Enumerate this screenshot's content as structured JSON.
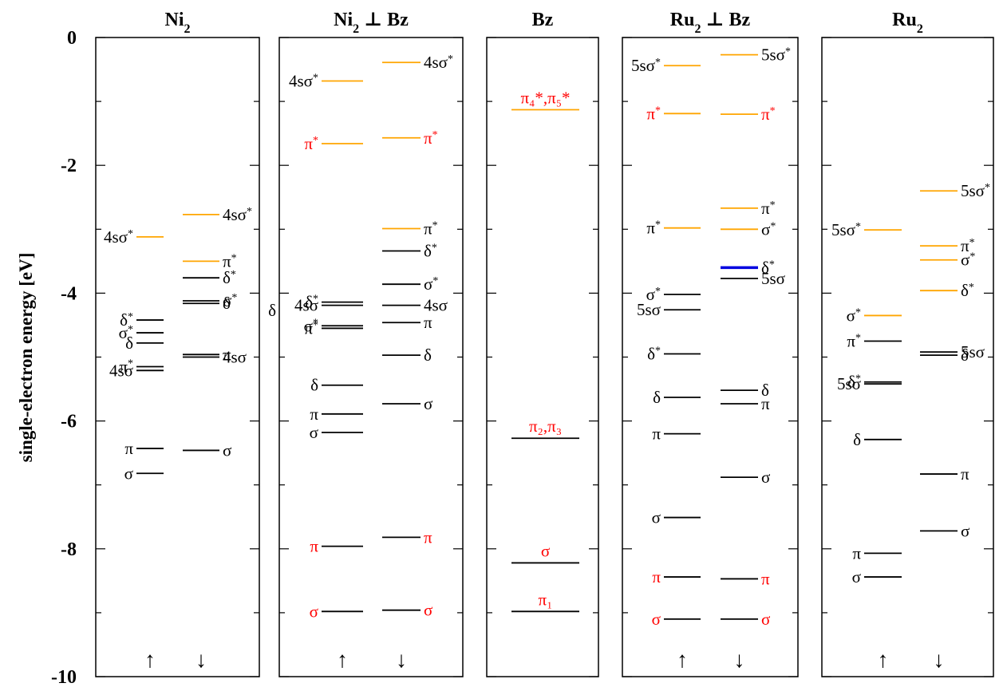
{
  "chart_data": {
    "type": "energy-level diagram",
    "ylabel": "single-electron energy [eV]",
    "ylim": [
      -10,
      0
    ],
    "yticks": [
      "0",
      "-2",
      "-4",
      "-6",
      "-8",
      "-10"
    ],
    "spin_up_label": "↑",
    "spin_down_label": "↓",
    "colors": {
      "black": "#000000",
      "orange": "#FFA500",
      "blue": "#0000E0",
      "red": "#FF0000"
    },
    "panels": [
      {
        "title": "Ni",
        "title_sub": "2",
        "title_rest": "",
        "spin_arrows": true,
        "levels": [
          {
            "col": "up",
            "e": -3.12,
            "color": "orange",
            "label": "4sσ",
            "sup": "*",
            "side": "left",
            "lc": "black"
          },
          {
            "col": "up",
            "e": -4.42,
            "color": "black",
            "label": "δ",
            "sup": "*",
            "side": "left",
            "lc": "black"
          },
          {
            "col": "up",
            "e": -4.62,
            "color": "black",
            "label": "σ",
            "sup": "*",
            "side": "left",
            "lc": "black"
          },
          {
            "col": "up",
            "e": -4.78,
            "color": "black",
            "label": "δ",
            "sup": "",
            "side": "left",
            "lc": "black"
          },
          {
            "col": "up",
            "e": -5.15,
            "color": "black",
            "label": "π",
            "sup": "*",
            "side": "left",
            "lc": "black"
          },
          {
            "col": "up",
            "e": -5.21,
            "color": "black",
            "label": "4sσ",
            "sup": "",
            "side": "left",
            "lc": "black"
          },
          {
            "col": "up",
            "e": -6.43,
            "color": "black",
            "label": "π",
            "sup": "",
            "side": "left",
            "lc": "black"
          },
          {
            "col": "up",
            "e": -6.82,
            "color": "black",
            "label": "σ",
            "sup": "",
            "side": "left",
            "lc": "black"
          },
          {
            "col": "down",
            "e": -2.77,
            "color": "orange",
            "label": "4sσ",
            "sup": "*",
            "side": "right",
            "lc": "black"
          },
          {
            "col": "down",
            "e": -3.5,
            "color": "orange",
            "label": "π",
            "sup": "*",
            "side": "right",
            "lc": "black"
          },
          {
            "col": "down",
            "e": -3.76,
            "color": "black",
            "label": "δ",
            "sup": "*",
            "side": "right",
            "lc": "black"
          },
          {
            "col": "down",
            "e": -4.12,
            "color": "black",
            "label": "σ",
            "sup": "*",
            "side": "right",
            "lc": "black"
          },
          {
            "col": "down",
            "e": -4.16,
            "color": "black",
            "label": "δ",
            "sup": "",
            "side": "right",
            "lc": "black"
          },
          {
            "col": "down",
            "e": -4.96,
            "color": "black",
            "label": "π",
            "sup": "",
            "side": "right",
            "lc": "black"
          },
          {
            "col": "down",
            "e": -5.0,
            "color": "black",
            "label": "4sσ",
            "sup": "",
            "side": "right",
            "lc": "black"
          },
          {
            "col": "down",
            "e": -6.46,
            "color": "black",
            "label": "σ",
            "sup": "",
            "side": "right",
            "lc": "black"
          }
        ]
      },
      {
        "title": "Ni",
        "title_sub": "2",
        "title_rest": " ⊥ Bz",
        "spin_arrows": true,
        "levels": [
          {
            "col": "up",
            "e": -0.68,
            "color": "orange",
            "label": "4sσ",
            "sup": "*",
            "side": "left",
            "lc": "black"
          },
          {
            "col": "up",
            "e": -1.66,
            "color": "orange",
            "label": "π",
            "sup": "*",
            "side": "left",
            "lc": "red"
          },
          {
            "col": "up",
            "e": -4.14,
            "color": "black",
            "label": "δ",
            "sup": "*",
            "side": "left",
            "lc": "black"
          },
          {
            "col": "up",
            "e": -4.19,
            "color": "black",
            "label": "4sσ",
            "sup": "",
            "side": "left",
            "lc": "black"
          },
          {
            "col": "up",
            "e": -4.51,
            "color": "black",
            "label": "σ",
            "sup": "*",
            "side": "left",
            "lc": "black"
          },
          {
            "col": "up",
            "e": -4.55,
            "color": "black",
            "label": "π",
            "sup": "*",
            "side": "left",
            "lc": "black"
          },
          {
            "col": "up",
            "e": -5.44,
            "color": "black",
            "label": "δ",
            "sup": "",
            "side": "left",
            "lc": "black"
          },
          {
            "col": "up",
            "e": -5.89,
            "color": "black",
            "label": "π",
            "sup": "",
            "side": "left",
            "lc": "black"
          },
          {
            "col": "up",
            "e": -6.18,
            "color": "black",
            "label": "σ",
            "sup": "",
            "side": "left",
            "lc": "black"
          },
          {
            "col": "up",
            "e": -7.96,
            "color": "black",
            "label": "π",
            "sup": "",
            "side": "left",
            "lc": "red"
          },
          {
            "col": "up",
            "e": -8.98,
            "color": "black",
            "label": "σ",
            "sup": "",
            "side": "left",
            "lc": "red"
          },
          {
            "col": "down",
            "e": -0.39,
            "color": "orange",
            "label": "4sσ",
            "sup": "*",
            "side": "right",
            "lc": "black"
          },
          {
            "col": "down",
            "e": -1.57,
            "color": "orange",
            "label": "π",
            "sup": "*",
            "side": "right",
            "lc": "red"
          },
          {
            "col": "down",
            "e": -2.99,
            "color": "orange",
            "label": "π",
            "sup": "*",
            "side": "right",
            "lc": "black"
          },
          {
            "col": "down",
            "e": -3.34,
            "color": "black",
            "label": "δ",
            "sup": "*",
            "side": "right",
            "lc": "black"
          },
          {
            "col": "down",
            "e": -3.86,
            "color": "black",
            "label": "σ",
            "sup": "*",
            "side": "right",
            "lc": "black"
          },
          {
            "col": "down",
            "e": -4.19,
            "color": "black",
            "label": "4sσ",
            "sup": "",
            "side": "right",
            "lc": "black"
          },
          {
            "col": "down",
            "e": -4.46,
            "color": "black",
            "label": "π",
            "sup": "",
            "side": "right",
            "lc": "black"
          },
          {
            "col": "down",
            "e": -4.97,
            "color": "black",
            "label": "δ",
            "sup": "",
            "side": "right",
            "lc": "black"
          },
          {
            "col": "down",
            "e": -5.73,
            "color": "black",
            "label": "σ",
            "sup": "",
            "side": "right",
            "lc": "black"
          },
          {
            "col": "down",
            "e": -7.82,
            "color": "black",
            "label": "π",
            "sup": "",
            "side": "right",
            "lc": "red"
          },
          {
            "col": "down",
            "e": -8.96,
            "color": "black",
            "label": "σ",
            "sup": "",
            "side": "right",
            "lc": "red"
          }
        ],
        "extra_labels": [
          {
            "label": "δ",
            "e": -4.27,
            "pos": "outside-left",
            "lc": "black"
          }
        ]
      },
      {
        "title": "Bz",
        "title_sub": "",
        "title_rest": "",
        "spin_arrows": false,
        "levels": [
          {
            "col": "center",
            "e": -1.13,
            "color": "orange",
            "label": "π₄*,π₅*",
            "side": "above",
            "lc": "red"
          },
          {
            "col": "center",
            "e": -6.27,
            "color": "black",
            "label": "π₂,π₃",
            "side": "above",
            "lc": "red"
          },
          {
            "col": "center",
            "e": -8.22,
            "color": "black",
            "label": "σ",
            "side": "above",
            "lc": "red"
          },
          {
            "col": "center",
            "e": -8.98,
            "color": "black",
            "label": "π₁",
            "side": "above",
            "lc": "red"
          }
        ]
      },
      {
        "title": "Ru",
        "title_sub": "2",
        "title_rest": " ⊥ Bz",
        "spin_arrows": true,
        "levels": [
          {
            "col": "up",
            "e": -0.44,
            "color": "orange",
            "label": "5sσ",
            "sup": "*",
            "side": "left",
            "lc": "black"
          },
          {
            "col": "up",
            "e": -1.19,
            "color": "orange",
            "label": "π",
            "sup": "*",
            "side": "left",
            "lc": "red"
          },
          {
            "col": "up",
            "e": -2.98,
            "color": "orange",
            "label": "π",
            "sup": "*",
            "side": "left",
            "lc": "black"
          },
          {
            "col": "up",
            "e": -4.02,
            "color": "black",
            "label": "σ",
            "sup": "*",
            "side": "left",
            "lc": "black"
          },
          {
            "col": "up",
            "e": -4.26,
            "color": "black",
            "label": "5sσ",
            "sup": "",
            "side": "left",
            "lc": "black"
          },
          {
            "col": "up",
            "e": -4.95,
            "color": "black",
            "label": "δ",
            "sup": "*",
            "side": "left",
            "lc": "black"
          },
          {
            "col": "up",
            "e": -5.63,
            "color": "black",
            "label": "δ",
            "sup": "",
            "side": "left",
            "lc": "black"
          },
          {
            "col": "up",
            "e": -6.2,
            "color": "black",
            "label": "π",
            "sup": "",
            "side": "left",
            "lc": "black"
          },
          {
            "col": "up",
            "e": -7.51,
            "color": "black",
            "label": "σ",
            "sup": "",
            "side": "left",
            "lc": "black"
          },
          {
            "col": "up",
            "e": -8.44,
            "color": "black",
            "label": "π",
            "sup": "",
            "side": "left",
            "lc": "red"
          },
          {
            "col": "up",
            "e": -9.1,
            "color": "black",
            "label": "σ",
            "sup": "",
            "side": "left",
            "lc": "red"
          },
          {
            "col": "down",
            "e": -0.27,
            "color": "orange",
            "label": "5sσ",
            "sup": "*",
            "side": "right",
            "lc": "black"
          },
          {
            "col": "down",
            "e": -1.2,
            "color": "orange",
            "label": "π",
            "sup": "*",
            "side": "right",
            "lc": "red"
          },
          {
            "col": "down",
            "e": -2.67,
            "color": "orange",
            "label": "π",
            "sup": "*",
            "side": "right",
            "lc": "black"
          },
          {
            "col": "down",
            "e": -3.0,
            "color": "orange",
            "label": "σ",
            "sup": "*",
            "side": "right",
            "lc": "black"
          },
          {
            "col": "down",
            "e": -3.6,
            "color": "blue",
            "label": "δ",
            "sup": "*",
            "side": "right",
            "lc": "black",
            "thick": true
          },
          {
            "col": "down",
            "e": -3.77,
            "color": "black",
            "label": "5sσ",
            "sup": "",
            "side": "right",
            "lc": "black"
          },
          {
            "col": "down",
            "e": -5.52,
            "color": "black",
            "label": "δ",
            "sup": "",
            "side": "right",
            "lc": "black"
          },
          {
            "col": "down",
            "e": -5.73,
            "color": "black",
            "label": "π",
            "sup": "",
            "side": "right",
            "lc": "black"
          },
          {
            "col": "down",
            "e": -6.88,
            "color": "black",
            "label": "σ",
            "sup": "",
            "side": "right",
            "lc": "black"
          },
          {
            "col": "down",
            "e": -8.47,
            "color": "black",
            "label": "π",
            "sup": "",
            "side": "right",
            "lc": "red"
          },
          {
            "col": "down",
            "e": -9.1,
            "color": "black",
            "label": "σ",
            "sup": "",
            "side": "right",
            "lc": "red"
          }
        ]
      },
      {
        "title": "Ru",
        "title_sub": "2",
        "title_rest": "",
        "spin_arrows": true,
        "levels": [
          {
            "col": "up",
            "e": -3.01,
            "color": "orange",
            "label": "5sσ",
            "sup": "*",
            "side": "left",
            "lc": "black"
          },
          {
            "col": "up",
            "e": -4.35,
            "color": "orange",
            "label": "σ",
            "sup": "*",
            "side": "left",
            "lc": "black"
          },
          {
            "col": "up",
            "e": -4.75,
            "color": "black",
            "label": "π",
            "sup": "*",
            "side": "left",
            "lc": "black"
          },
          {
            "col": "up",
            "e": -5.39,
            "color": "black",
            "label": "δ",
            "sup": "*",
            "side": "left",
            "lc": "black"
          },
          {
            "col": "up",
            "e": -5.42,
            "color": "black",
            "label": "5sσ",
            "sup": "",
            "side": "left",
            "lc": "black"
          },
          {
            "col": "up",
            "e": -6.29,
            "color": "black",
            "label": "δ",
            "sup": "",
            "side": "left",
            "lc": "black"
          },
          {
            "col": "up",
            "e": -8.07,
            "color": "black",
            "label": "π",
            "sup": "",
            "side": "left",
            "lc": "black"
          },
          {
            "col": "up",
            "e": -8.44,
            "color": "black",
            "label": "σ",
            "sup": "",
            "side": "left",
            "lc": "black"
          },
          {
            "col": "down",
            "e": -2.4,
            "color": "orange",
            "label": "5sσ",
            "sup": "*",
            "side": "right",
            "lc": "black"
          },
          {
            "col": "down",
            "e": -3.26,
            "color": "orange",
            "label": "π",
            "sup": "*",
            "side": "right",
            "lc": "black"
          },
          {
            "col": "down",
            "e": -3.48,
            "color": "orange",
            "label": "σ",
            "sup": "*",
            "side": "right",
            "lc": "black"
          },
          {
            "col": "down",
            "e": -3.96,
            "color": "orange",
            "label": "δ",
            "sup": "*",
            "side": "right",
            "lc": "black"
          },
          {
            "col": "down",
            "e": -4.92,
            "color": "black",
            "label": "5sσ",
            "sup": "",
            "side": "right",
            "lc": "black"
          },
          {
            "col": "down",
            "e": -4.97,
            "color": "black",
            "label": "δ",
            "sup": "",
            "side": "right",
            "lc": "black"
          },
          {
            "col": "down",
            "e": -6.83,
            "color": "black",
            "label": "π",
            "sup": "",
            "side": "right",
            "lc": "black"
          },
          {
            "col": "down",
            "e": -7.72,
            "color": "black",
            "label": "σ",
            "sup": "",
            "side": "right",
            "lc": "black"
          }
        ]
      }
    ]
  }
}
